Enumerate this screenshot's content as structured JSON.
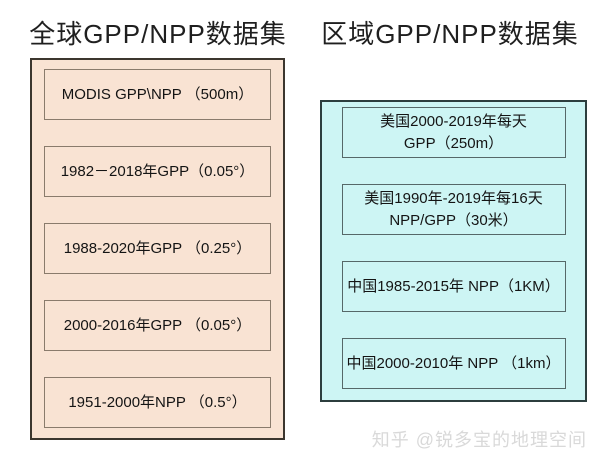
{
  "page": {
    "background_color": "#ffffff",
    "watermark": "知乎 @锐多宝的地理空间",
    "watermark_color": "#d9d9d9"
  },
  "global_panel": {
    "title": "全球GPP/NPP数据集",
    "fill_color": "#f9e3d3",
    "border_color": "#3c362e",
    "item_border_color": "#8a7b6c",
    "items": [
      "MODIS GPP\\NPP （500m）",
      "1982－2018年GPP（0.05°）",
      "1988-2020年GPP （0.25°）",
      "2000-2016年GPP （0.05°）",
      "1951-2000年NPP （0.5°）"
    ]
  },
  "regional_panel": {
    "title": "区域GPP/NPP数据集",
    "fill_color": "#cdf5f4",
    "border_color": "#2c3e3e",
    "item_border_color": "#566868",
    "items": [
      {
        "lines": [
          "美国2000-2019年每天",
          "GPP（250m）"
        ]
      },
      {
        "lines": [
          "美国1990年-2019年每16天",
          "NPP/GPP（30米）"
        ]
      },
      {
        "lines": [
          "中国1985-2015年 NPP（1KM）"
        ]
      },
      {
        "lines": [
          "中国2000-2010年 NPP （1km）"
        ]
      }
    ]
  }
}
